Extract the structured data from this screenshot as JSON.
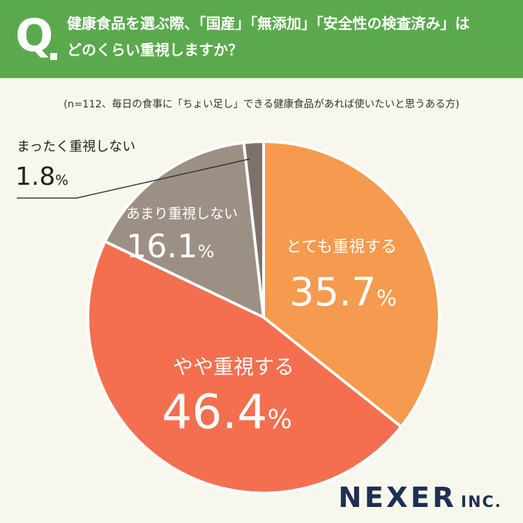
{
  "header": {
    "q_mark": "Q",
    "line1": "健康食品を選ぶ際、「国産」「無添加」「安全性の検査済み」は",
    "line2": "どのくらい重視しますか？"
  },
  "note": "(n=112、毎日の食事に「ちょい足し」できる健康食品があれば使いたいと思うある方)",
  "brand": {
    "name": "NEXER",
    "suffix": "INC."
  },
  "colors": {
    "header_bg": "#5aaa4d",
    "slice_very": "#f59a4e",
    "slice_somewhat": "#f36f4f",
    "slice_notmuch": "#9c9085",
    "slice_notatall": "#7d726b"
  },
  "chart_data": {
    "type": "pie",
    "title": "",
    "unit": "%",
    "slices": [
      {
        "label": "とても重視する",
        "value": 35.7,
        "display": "35.7"
      },
      {
        "label": "やや重視する",
        "value": 46.4,
        "display": "46.4"
      },
      {
        "label": "あまり重視しない",
        "value": 16.1,
        "display": "16.1"
      },
      {
        "label": "まったく重視しない",
        "value": 1.8,
        "display": "1.8"
      }
    ],
    "start": "12 o'clock",
    "direction": "clockwise"
  }
}
